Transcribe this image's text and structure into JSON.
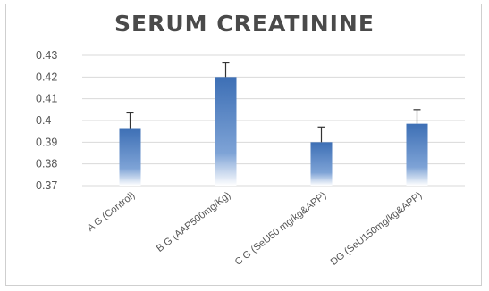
{
  "chart_data": {
    "type": "bar",
    "title": "SERUM CREATININE",
    "xlabel": "",
    "ylabel": "",
    "categories": [
      "A G (Control)",
      "B G (AAP500mg/Kg)",
      "C G (SeU50 mg/kg&APP)",
      "DG (SeU150mg/kg&APP)"
    ],
    "values": [
      0.3965,
      0.42,
      0.39,
      0.3985
    ],
    "error": [
      0.007,
      0.0065,
      0.007,
      0.0065
    ],
    "ylim": [
      0.37,
      0.43
    ],
    "yticks": [
      "0.37",
      "0.38",
      "0.39",
      "0.4",
      "0.41",
      "0.42",
      "0.43"
    ],
    "grid": true,
    "colors": {
      "bar_top": "#3d6fb5",
      "bar_bottom": "#ffffff",
      "grid": "#d9d9d9",
      "error": "#333333"
    }
  }
}
